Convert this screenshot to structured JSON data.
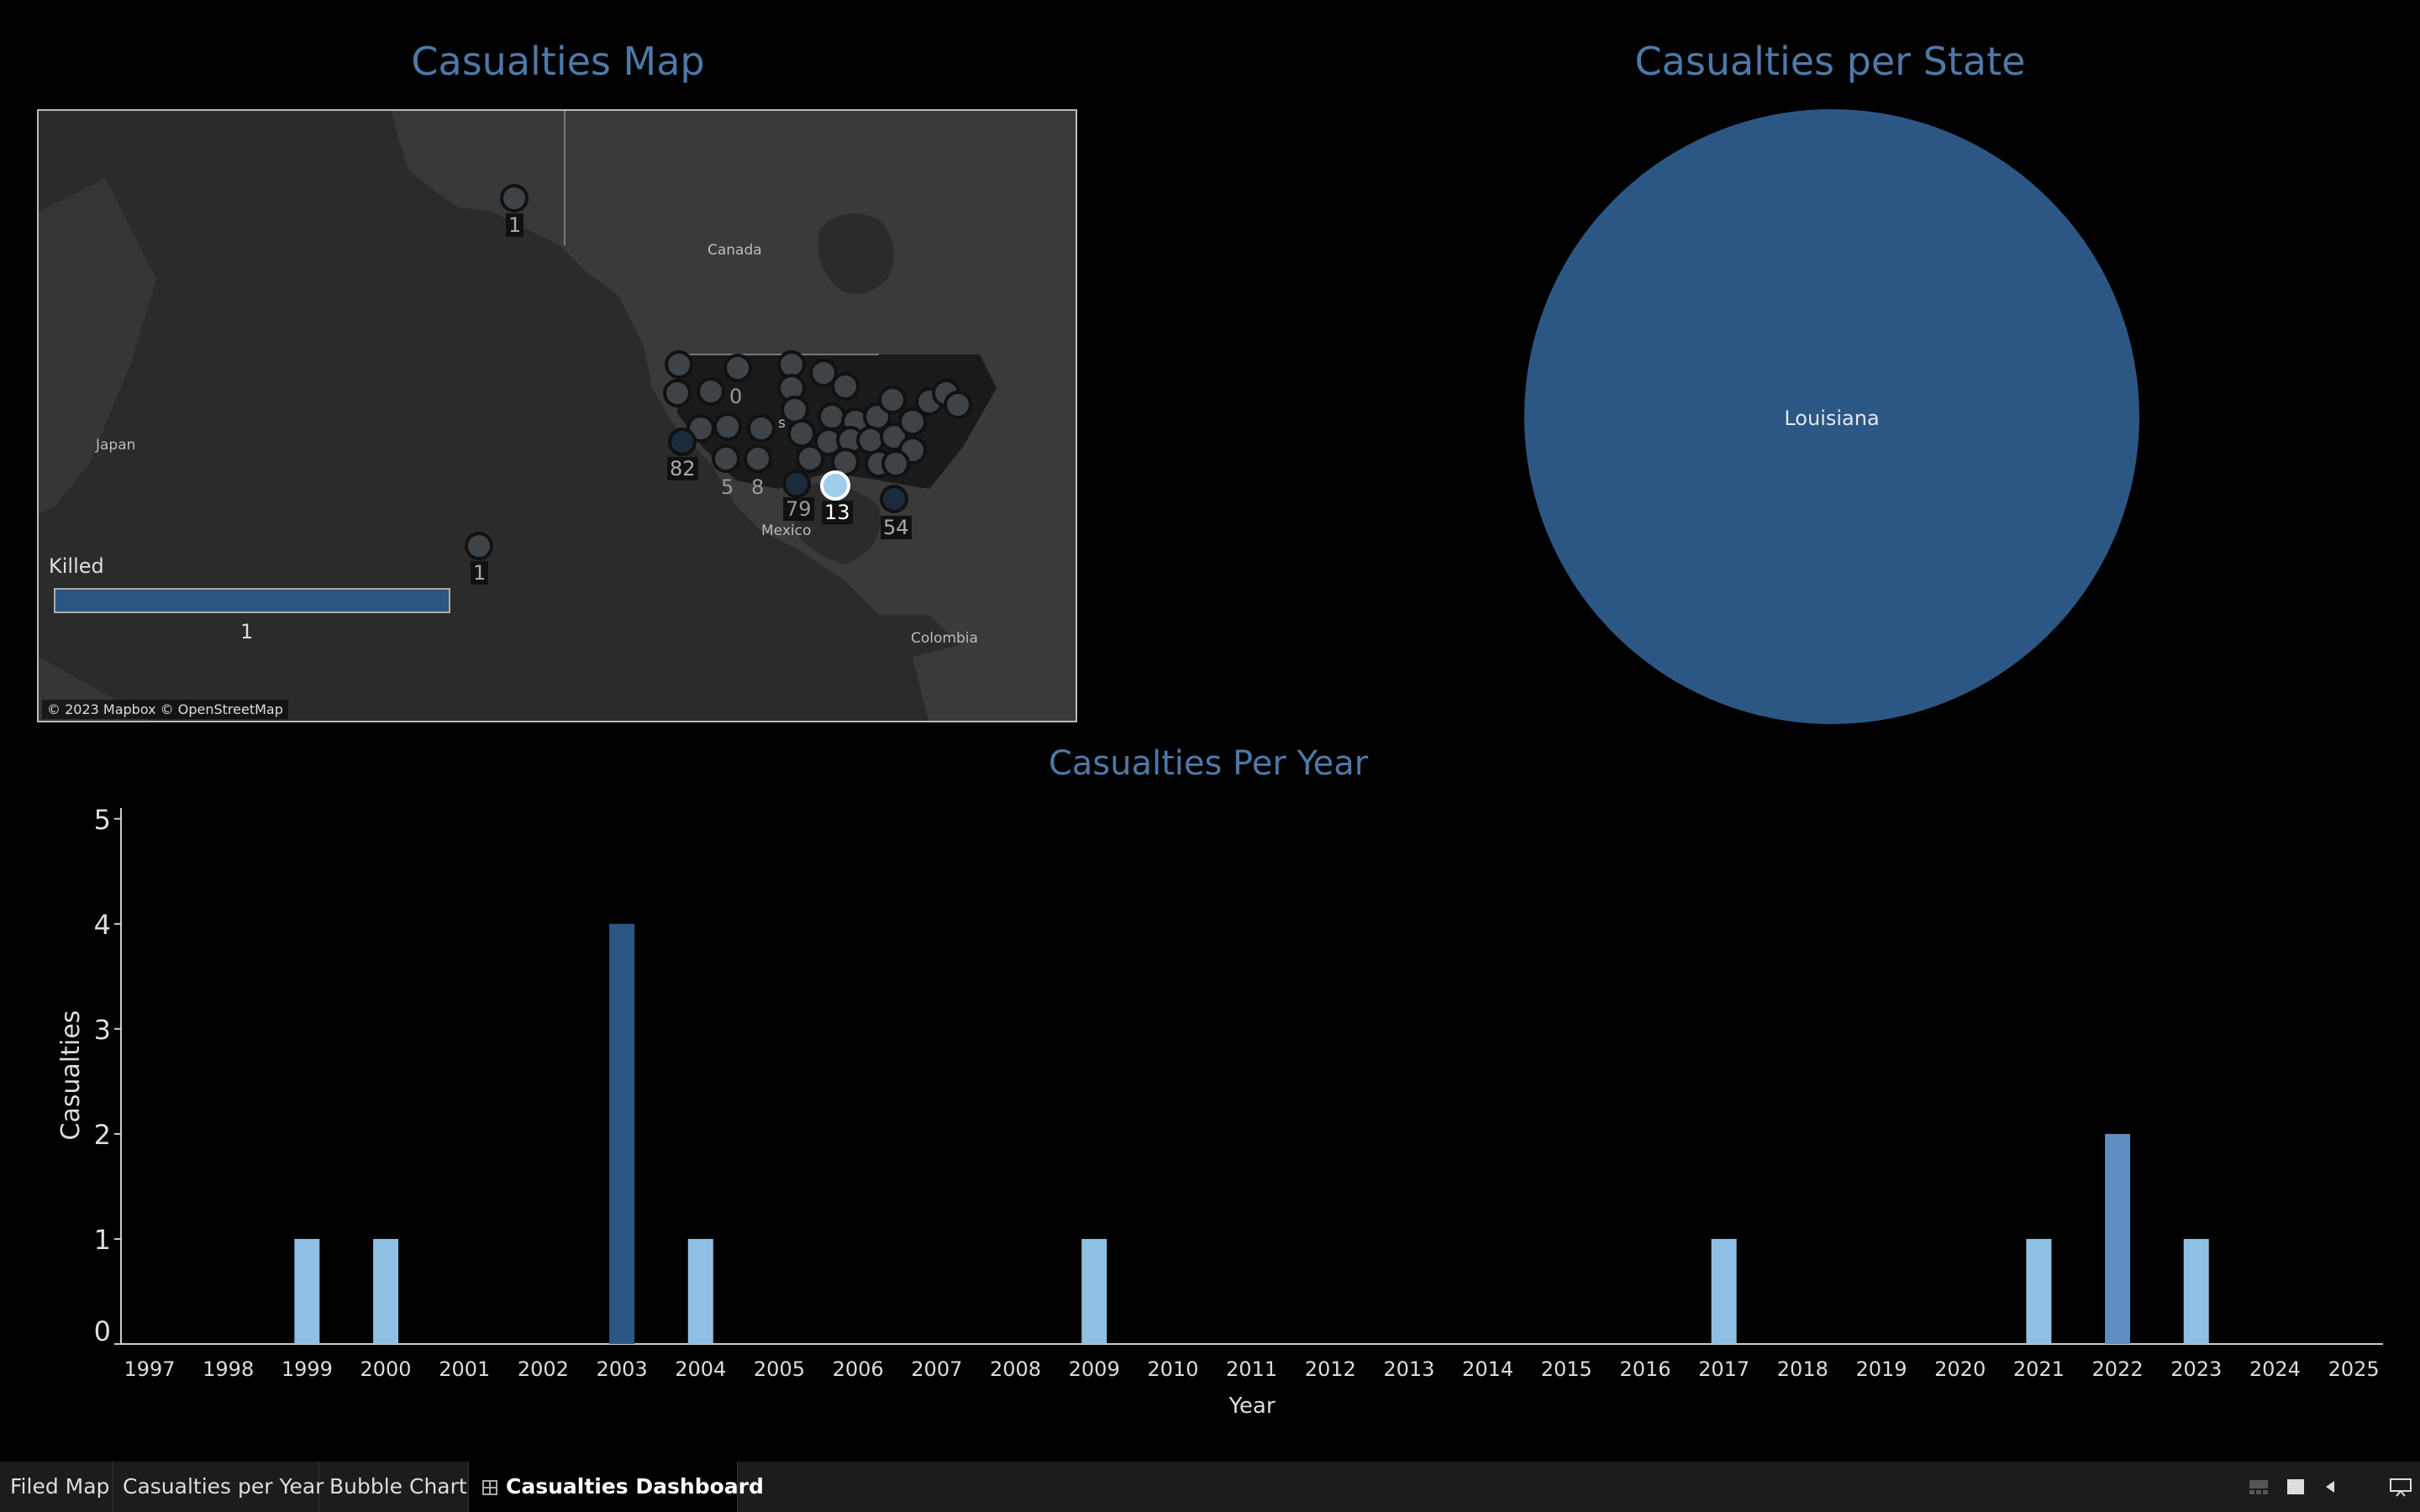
{
  "titles": {
    "map": "Casualties Map",
    "pie": "Casualties per State",
    "bar": "Casualties Per Year"
  },
  "map": {
    "region_labels": [
      "Canada",
      "Japan",
      "Mexico",
      "Colombia",
      "s"
    ],
    "marker_labels": [
      "1",
      "0",
      "82",
      "5",
      "8",
      "79",
      "13",
      "54",
      "1"
    ],
    "legend": {
      "title": "Killed",
      "value": "1"
    },
    "attribution": "© 2023 Mapbox © OpenStreetMap"
  },
  "pie": {
    "slices": [
      {
        "label": "Louisiana",
        "value": 1,
        "color": "#2c5785"
      }
    ]
  },
  "chart_data": {
    "type": "bar",
    "xlabel": "Year",
    "ylabel": "Casualties",
    "categories": [
      "1997",
      "1998",
      "1999",
      "2000",
      "2001",
      "2002",
      "2003",
      "2004",
      "2005",
      "2006",
      "2007",
      "2008",
      "2009",
      "2010",
      "2011",
      "2012",
      "2013",
      "2014",
      "2015",
      "2016",
      "2017",
      "2018",
      "2019",
      "2020",
      "2021",
      "2022",
      "2023",
      "2024",
      "2025"
    ],
    "values": [
      0,
      0,
      1,
      1,
      0,
      0,
      4,
      1,
      0,
      0,
      0,
      0,
      1,
      0,
      0,
      0,
      0,
      0,
      0,
      0,
      1,
      0,
      0,
      0,
      1,
      2,
      1,
      0,
      0
    ],
    "yticks": [
      0,
      1,
      2,
      3,
      4,
      5
    ],
    "ylim": [
      0,
      5
    ],
    "colors": {
      "low": "#8fbfe3",
      "mid": "#5f8fc1",
      "high": "#2c5785"
    },
    "grid": false
  },
  "tabs": [
    {
      "label": "Filed Map",
      "active": false
    },
    {
      "label": "Casualties per Year",
      "active": false
    },
    {
      "label": "Bubble Chart",
      "active": false
    },
    {
      "label": "Casualties Dashboard",
      "active": true
    }
  ]
}
